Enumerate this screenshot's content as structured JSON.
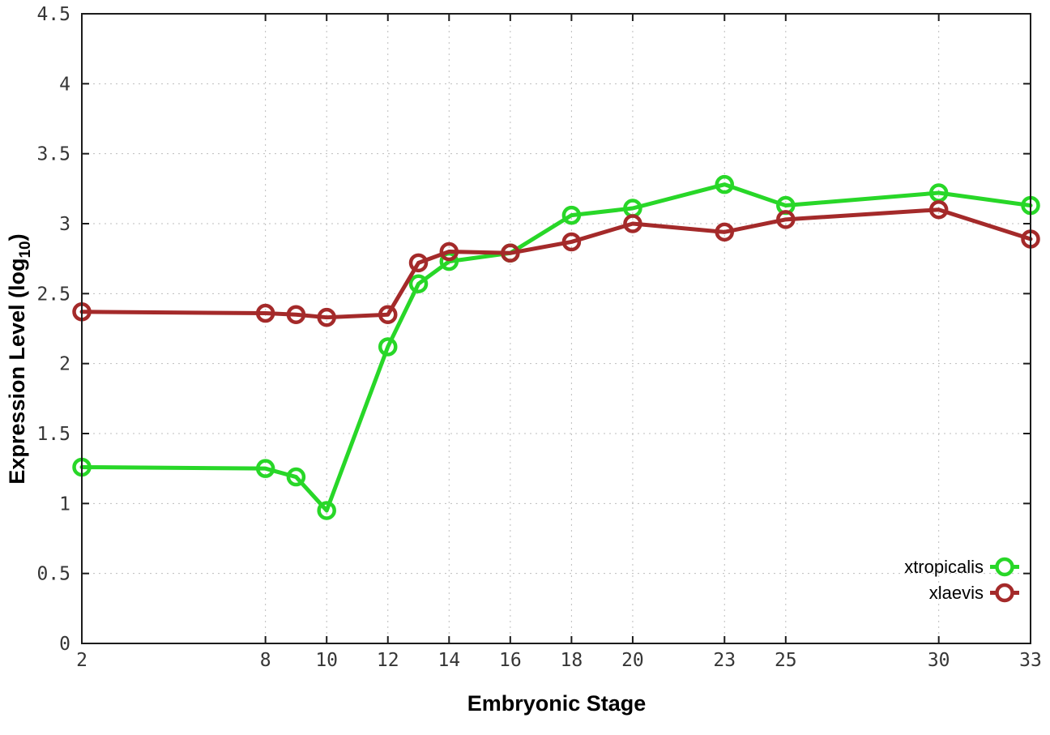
{
  "figure": {
    "background": "#ffffff",
    "border_color": "#1c1c1c",
    "grid_color": "#bdbdbd",
    "tick_label_color": "#363636"
  },
  "chart_data": {
    "type": "line",
    "title": "",
    "xlabel": "Embryonic Stage",
    "ylabel": "Expression Level (log10)",
    "ylabel_rich": {
      "main": "Expression Level (log",
      "sub": "10",
      "end": ")"
    },
    "xlim": [
      2,
      33
    ],
    "ylim": [
      0,
      4.5
    ],
    "xticks": [
      2,
      8,
      10,
      12,
      14,
      16,
      18,
      20,
      23,
      25,
      30,
      33
    ],
    "yticks": [
      0,
      0.5,
      1,
      1.5,
      2,
      2.5,
      3,
      3.5,
      4,
      4.5
    ],
    "grid": "dotted",
    "legend": {
      "position": "inside-bottom-right"
    },
    "x": [
      2,
      8,
      9,
      10,
      12,
      13,
      14,
      16,
      18,
      20,
      23,
      25,
      30,
      33
    ],
    "series": [
      {
        "name": "xtropicalis",
        "color": "#28d728",
        "marker": "open-circle",
        "values": [
          1.26,
          1.25,
          1.19,
          0.95,
          2.12,
          2.57,
          2.73,
          2.79,
          3.06,
          3.11,
          3.28,
          3.13,
          3.22,
          3.13
        ]
      },
      {
        "name": "xlaevis",
        "color": "#a42a2a",
        "marker": "open-circle",
        "values": [
          2.37,
          2.36,
          2.35,
          2.33,
          2.35,
          2.72,
          2.8,
          2.79,
          2.87,
          3.0,
          2.94,
          3.03,
          3.1,
          2.89
        ]
      }
    ]
  }
}
